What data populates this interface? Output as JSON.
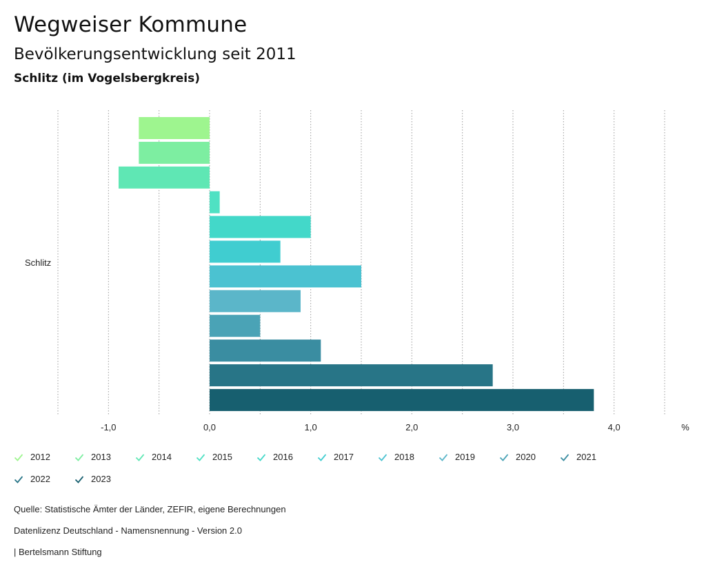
{
  "header": {
    "title": "Wegweiser Kommune",
    "subtitle": "Bevölkerungsentwicklung seit 2011",
    "region": "Schlitz (im Vogelsbergkreis)"
  },
  "chart_data": {
    "type": "bar",
    "orientation": "horizontal",
    "categories": [
      "Schlitz"
    ],
    "series": [
      {
        "name": "2012",
        "values": [
          -0.7
        ],
        "color": "#9ef58f"
      },
      {
        "name": "2013",
        "values": [
          -0.7
        ],
        "color": "#7deea1"
      },
      {
        "name": "2014",
        "values": [
          -0.9
        ],
        "color": "#5fe7b4"
      },
      {
        "name": "2015",
        "values": [
          0.1
        ],
        "color": "#4fe1c3"
      },
      {
        "name": "2016",
        "values": [
          1.0
        ],
        "color": "#43d8c9"
      },
      {
        "name": "2017",
        "values": [
          0.7
        ],
        "color": "#40cdd0"
      },
      {
        "name": "2018",
        "values": [
          1.5
        ],
        "color": "#4bc2d1"
      },
      {
        "name": "2019",
        "values": [
          0.9
        ],
        "color": "#5bb6c9"
      },
      {
        "name": "2020",
        "values": [
          0.5
        ],
        "color": "#4aa3b6"
      },
      {
        "name": "2021",
        "values": [
          1.1
        ],
        "color": "#3a8da1"
      },
      {
        "name": "2022",
        "values": [
          2.8
        ],
        "color": "#287587"
      },
      {
        "name": "2023",
        "values": [
          3.8
        ],
        "color": "#175f6f"
      }
    ],
    "xlim": [
      -1.5,
      4.5
    ],
    "xticks": [
      -1.0,
      0.0,
      1.0,
      2.0,
      3.0,
      4.0
    ],
    "xtick_labels": [
      "-1,0",
      "0,0",
      "1,0",
      "2,0",
      "3,0",
      "4,0"
    ],
    "unit": "%",
    "grid": true,
    "legend_position": "bottom"
  },
  "footer": {
    "source": "Quelle: Statistische Ämter der Länder, ZEFIR, eigene Berechnungen",
    "license": "Datenlizenz Deutschland - Namensnennung - Version 2.0",
    "publisher": "| Bertelsmann Stiftung"
  }
}
